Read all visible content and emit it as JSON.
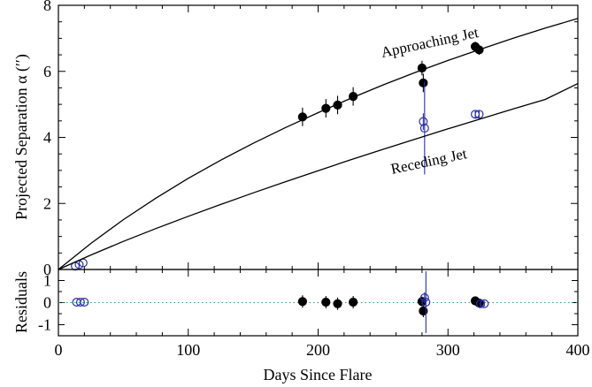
{
  "chart_data": [
    {
      "type": "scatter",
      "panel": "main",
      "ylabel": "Projected Separation α (′′)",
      "xlim": [
        0,
        400
      ],
      "ylim": [
        0,
        8
      ],
      "yticks": [
        0,
        2,
        4,
        6,
        8
      ],
      "annotations": [
        "Approaching Jet",
        "Receding Jet"
      ],
      "series": [
        {
          "marker": "filled-circle",
          "color": "#000000",
          "points": [
            {
              "x": 188,
              "y": 4.62,
              "yerr": 0.28
            },
            {
              "x": 206,
              "y": 4.88,
              "yerr": 0.28
            },
            {
              "x": 215,
              "y": 4.98,
              "yerr": 0.28
            },
            {
              "x": 227,
              "y": 5.24,
              "yerr": 0.28
            },
            {
              "x": 280,
              "y": 6.1,
              "yerr": 0.22
            },
            {
              "x": 281,
              "y": 5.65,
              "yerr": 0.28
            },
            {
              "x": 321,
              "y": 6.75,
              "yerr": 0.15
            },
            {
              "x": 324,
              "y": 6.65,
              "yerr": 0.15
            }
          ]
        },
        {
          "marker": "open-circle",
          "color": "#2b2fa8",
          "points": [
            {
              "x": 13,
              "y": 0.1
            },
            {
              "x": 16,
              "y": 0.15
            },
            {
              "x": 19,
              "y": 0.2
            },
            {
              "x": 281,
              "y": 4.48,
              "yerr": 0.25
            },
            {
              "x": 282,
              "y": 4.28,
              "yerr": 1.4
            },
            {
              "x": 321,
              "y": 4.7,
              "yerr": 0.12
            },
            {
              "x": 324,
              "y": 4.7,
              "yerr": 0.12
            }
          ]
        },
        {
          "type": "line",
          "color": "#000000",
          "x": [
            0,
            25,
            50,
            75,
            100,
            125,
            150,
            175,
            200,
            225,
            250,
            275,
            300,
            325,
            350,
            375,
            400
          ],
          "y": [
            0,
            0.79,
            1.51,
            2.16,
            2.76,
            3.31,
            3.82,
            4.3,
            4.75,
            5.18,
            5.59,
            5.97,
            6.33,
            6.67,
            7.0,
            7.31,
            7.6
          ]
        },
        {
          "type": "line",
          "color": "#000000",
          "x": [
            0,
            25,
            50,
            75,
            100,
            125,
            150,
            175,
            200,
            225,
            250,
            275,
            300,
            325,
            350,
            375,
            400
          ],
          "y": [
            0,
            0.44,
            0.85,
            1.24,
            1.61,
            1.97,
            2.32,
            2.66,
            2.99,
            3.32,
            3.64,
            3.95,
            4.26,
            4.56,
            4.86,
            5.15,
            5.63
          ]
        }
      ]
    },
    {
      "type": "scatter",
      "panel": "residuals",
      "xlabel": "Days Since Flare",
      "ylabel": "Residuals",
      "xlim": [
        0,
        400
      ],
      "ylim": [
        -1.5,
        1.5
      ],
      "xticks": [
        0,
        100,
        200,
        300,
        400
      ],
      "yticks": [
        -1,
        0,
        1
      ],
      "zero_line": {
        "y": 0,
        "style": "dotted",
        "color": "#2a9a8c"
      },
      "series": [
        {
          "marker": "filled-circle",
          "color": "#000000",
          "points": [
            {
              "x": 188,
              "y": 0.05,
              "yerr": 0.28
            },
            {
              "x": 206,
              "y": 0.02,
              "yerr": 0.28
            },
            {
              "x": 215,
              "y": -0.05,
              "yerr": 0.28
            },
            {
              "x": 227,
              "y": 0.02,
              "yerr": 0.28
            },
            {
              "x": 280,
              "y": 0.05,
              "yerr": 0.22
            },
            {
              "x": 281,
              "y": -0.38,
              "yerr": 0.28
            },
            {
              "x": 321,
              "y": 0.08,
              "yerr": 0.15
            },
            {
              "x": 324,
              "y": -0.02,
              "yerr": 0.15
            }
          ]
        },
        {
          "marker": "open-circle",
          "color": "#2b2fa8",
          "points": [
            {
              "x": 14,
              "y": 0.02
            },
            {
              "x": 17,
              "y": 0.02
            },
            {
              "x": 20,
              "y": 0.02
            },
            {
              "x": 282,
              "y": 0.22,
              "yerr": 0.25
            },
            {
              "x": 283,
              "y": 0.02,
              "yerr": 1.4
            },
            {
              "x": 325,
              "y": -0.05,
              "yerr": 0.12
            },
            {
              "x": 328,
              "y": -0.05,
              "yerr": 0.12
            }
          ]
        }
      ]
    }
  ]
}
